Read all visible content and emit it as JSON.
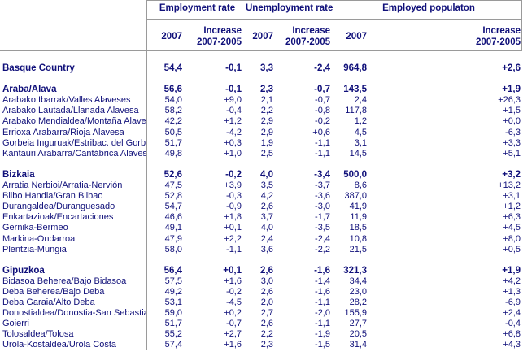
{
  "headers": {
    "groups": [
      "Employment rate",
      "Unemployment rate",
      "Employed populaton"
    ],
    "year": "2007",
    "increase_line1": "Increase",
    "increase_line2": "2007-2005"
  },
  "rows": [
    {
      "label": "Basque Country",
      "v": [
        "54,4",
        "-0,1",
        "3,3",
        "-2,4",
        "964,8",
        "+2,6"
      ],
      "bold": true
    },
    null,
    {
      "label": "Araba/Alava",
      "v": [
        "56,6",
        "-0,1",
        "2,3",
        "-0,7",
        "143,5",
        "+1,9"
      ],
      "bold": true
    },
    {
      "label": "Arabako Ibarrak/Valles Alaveses",
      "v": [
        "54,0",
        "+9,0",
        "2,1",
        "-0,7",
        "2,4",
        "+26,3"
      ]
    },
    {
      "label": "Arabako Lautada/Llanada Alavesa",
      "v": [
        "58,2",
        "-0,4",
        "2,2",
        "-0,8",
        "117,8",
        "+1,5"
      ]
    },
    {
      "label": "Arabako Mendialdea/Montaña Alavesa",
      "v": [
        "42,2",
        "+1,2",
        "2,9",
        "-0,2",
        "1,2",
        "+0,0"
      ]
    },
    {
      "label": "Errioxa Arabarra/Rioja Alavesa",
      "v": [
        "50,5",
        "-4,2",
        "2,9",
        "+0,6",
        "4,5",
        "-6,3"
      ]
    },
    {
      "label": "Gorbeia Inguruak/Estribac. del Gorbea",
      "v": [
        "51,7",
        "+0,3",
        "1,9",
        "-1,1",
        "3,1",
        "+3,3"
      ]
    },
    {
      "label": "Kantauri Arabarra/Cantábrica Alavesa",
      "v": [
        "49,8",
        "+1,0",
        "2,5",
        "-1,1",
        "14,5",
        "+5,1"
      ]
    },
    null,
    {
      "label": "Bizkaia",
      "v": [
        "52,6",
        "-0,2",
        "4,0",
        "-3,4",
        "500,0",
        "+3,2"
      ],
      "bold": true
    },
    {
      "label": "Arratia Nerbioi/Arratia-Nervión",
      "v": [
        "47,5",
        "+3,9",
        "3,5",
        "-3,7",
        "8,6",
        "+13,2"
      ]
    },
    {
      "label": "Bilbo Handia/Gran Bilbao",
      "v": [
        "52,8",
        "-0,3",
        "4,2",
        "-3,6",
        "387,0",
        "+3,1"
      ]
    },
    {
      "label": "Durangaldea/Duranguesado",
      "v": [
        "54,7",
        "-0,9",
        "2,6",
        "-3,0",
        "41,9",
        "+1,2"
      ]
    },
    {
      "label": "Enkartazioak/Encartaciones",
      "v": [
        "46,6",
        "+1,8",
        "3,7",
        "-1,7",
        "11,9",
        "+6,3"
      ]
    },
    {
      "label": "Gernika-Bermeo",
      "v": [
        "49,1",
        "+0,1",
        "4,0",
        "-3,5",
        "18,5",
        "+4,5"
      ]
    },
    {
      "label": "Markina-Ondarroa",
      "v": [
        "47,9",
        "+2,2",
        "2,4",
        "-2,4",
        "10,8",
        "+8,0"
      ]
    },
    {
      "label": "Plentzia-Mungia",
      "v": [
        "58,0",
        "-1,1",
        "3,6",
        "-2,2",
        "21,5",
        "+0,5"
      ]
    },
    null,
    {
      "label": "Gipuzkoa",
      "v": [
        "56,4",
        "+0,1",
        "2,6",
        "-1,6",
        "321,3",
        "+1,9"
      ],
      "bold": true
    },
    {
      "label": "Bidasoa Beherea/Bajo Bidasoa",
      "v": [
        "57,5",
        "+1,6",
        "3,0",
        "-1,4",
        "34,4",
        "+4,2"
      ]
    },
    {
      "label": "Deba Beherea/Bajo Deba",
      "v": [
        "49,2",
        "-0,2",
        "2,6",
        "-1,6",
        "23,0",
        "+1,3"
      ]
    },
    {
      "label": "Deba Garaia/Alto Deba",
      "v": [
        "53,1",
        "-4,5",
        "2,0",
        "-1,1",
        "28,2",
        "-6,9"
      ]
    },
    {
      "label": "Donostialdea/Donostia-San Sebastián",
      "v": [
        "59,0",
        "+0,2",
        "2,7",
        "-2,0",
        "155,9",
        "+2,4"
      ]
    },
    {
      "label": "Goierri",
      "v": [
        "51,7",
        "-0,7",
        "2,6",
        "-1,1",
        "27,7",
        "-0,4"
      ]
    },
    {
      "label": "Tolosaldea/Tolosa",
      "v": [
        "55,2",
        "+2,7",
        "2,2",
        "-1,9",
        "20,5",
        "+6,8"
      ]
    },
    {
      "label": "Urola-Kostaldea/Urola Costa",
      "v": [
        "57,4",
        "+1,6",
        "2,3",
        "-1,5",
        "31,4",
        "+4,3"
      ]
    }
  ]
}
